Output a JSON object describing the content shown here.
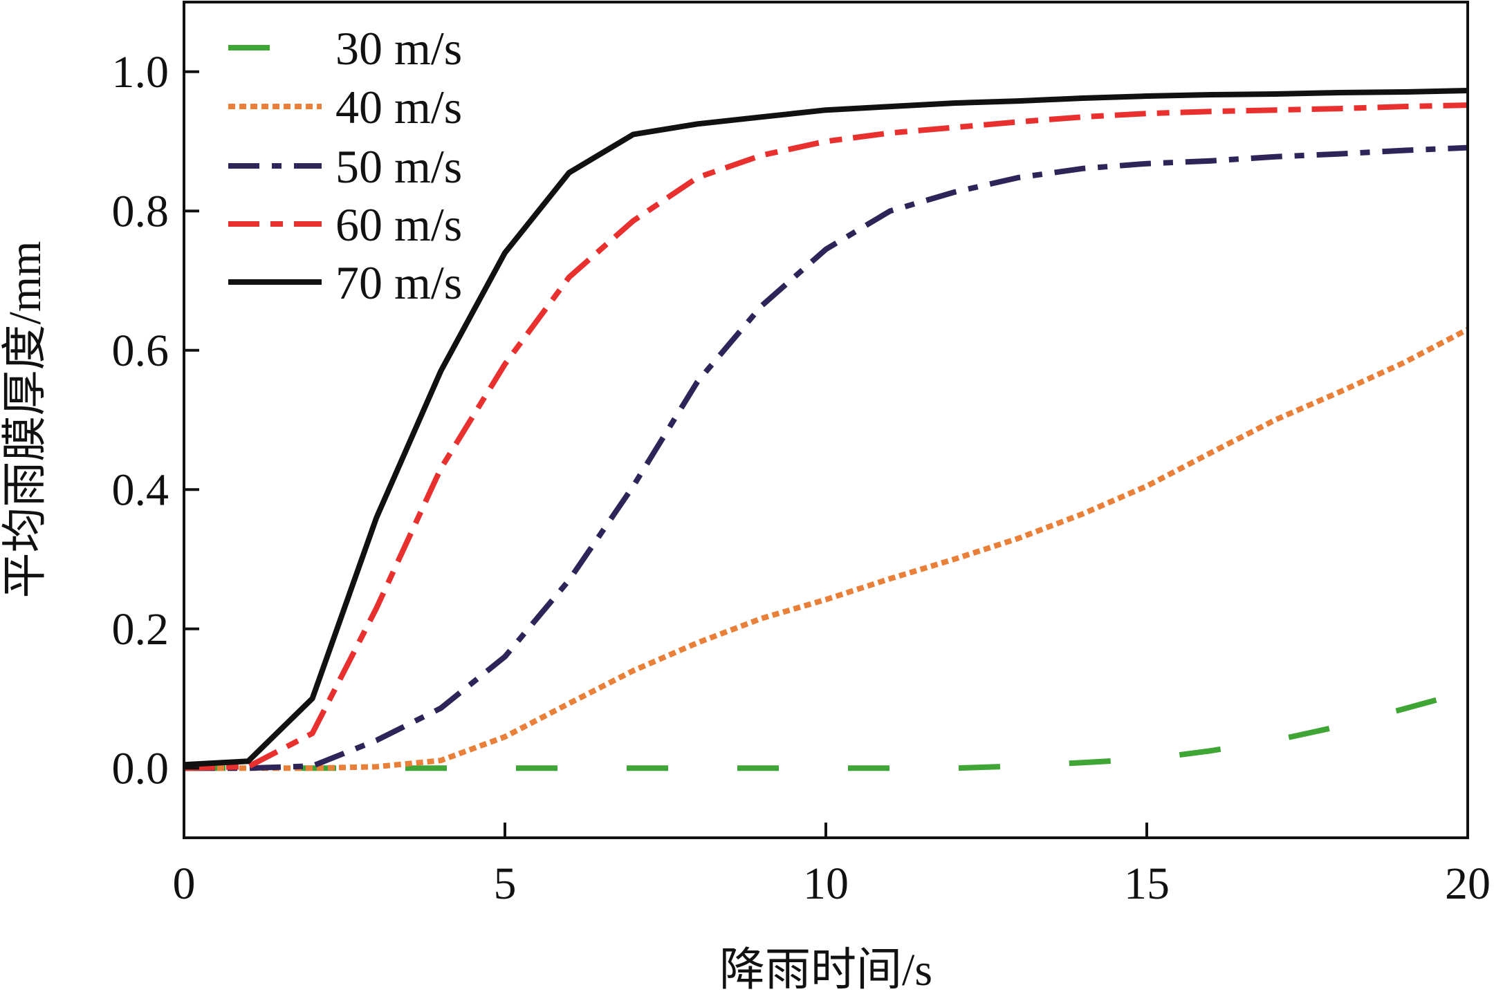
{
  "chart_data": {
    "type": "line",
    "title": "",
    "xlabel": "降雨时间/s",
    "ylabel": "平均雨膜厚度/mm",
    "xlim": [
      0,
      20
    ],
    "ylim": [
      -0.1,
      1.1
    ],
    "xticks": [
      "0",
      "5",
      "10",
      "15",
      "20"
    ],
    "xtick_values": [
      0,
      5,
      10,
      15,
      20
    ],
    "yticks": [
      "0.0",
      "0.2",
      "0.4",
      "0.6",
      "0.8",
      "1.0"
    ],
    "ytick_values": [
      0,
      0.2,
      0.4,
      0.6,
      0.8,
      1.0
    ],
    "grid": false,
    "legend_position": "top-left",
    "x": [
      0,
      1,
      2,
      3,
      4,
      5,
      6,
      7,
      8,
      9,
      10,
      11,
      12,
      13,
      14,
      15,
      16,
      17,
      18,
      19,
      20
    ],
    "series": [
      {
        "name": "30 m/s",
        "color": "#3fa535",
        "dash": "60 100",
        "values": [
          0,
          0,
          0,
          0,
          0,
          0,
          0,
          0,
          0,
          0,
          0,
          0,
          0,
          0.003,
          0.008,
          0.013,
          0.025,
          0.04,
          0.06,
          0.085,
          0.11
        ]
      },
      {
        "name": "40 m/s",
        "color": "#e8803a",
        "dash": "10 6",
        "values": [
          0,
          0,
          0,
          0.002,
          0.011,
          0.045,
          0.093,
          0.14,
          0.18,
          0.215,
          0.242,
          0.272,
          0.3,
          0.33,
          0.365,
          0.405,
          0.453,
          0.5,
          0.54,
          0.582,
          0.63
        ]
      },
      {
        "name": "50 m/s",
        "color": "#2e2458",
        "dash": "45 18 14 18",
        "values": [
          0,
          0,
          0.003,
          0.04,
          0.086,
          0.16,
          0.27,
          0.405,
          0.555,
          0.664,
          0.745,
          0.8,
          0.827,
          0.848,
          0.861,
          0.868,
          0.872,
          0.878,
          0.882,
          0.887,
          0.891
        ]
      },
      {
        "name": "60 m/s",
        "color": "#e8302e",
        "dash": "45 16 18 16",
        "values": [
          0,
          0.002,
          0.05,
          0.23,
          0.43,
          0.58,
          0.705,
          0.786,
          0.848,
          0.88,
          0.9,
          0.912,
          0.92,
          0.928,
          0.935,
          0.94,
          0.943,
          0.945,
          0.947,
          0.95,
          0.952
        ]
      },
      {
        "name": "70 m/s",
        "color": "#111111",
        "dash": "",
        "values": [
          0.005,
          0.01,
          0.1,
          0.36,
          0.57,
          0.74,
          0.855,
          0.91,
          0.925,
          0.935,
          0.945,
          0.95,
          0.955,
          0.958,
          0.962,
          0.965,
          0.967,
          0.968,
          0.97,
          0.971,
          0.973
        ]
      }
    ]
  }
}
